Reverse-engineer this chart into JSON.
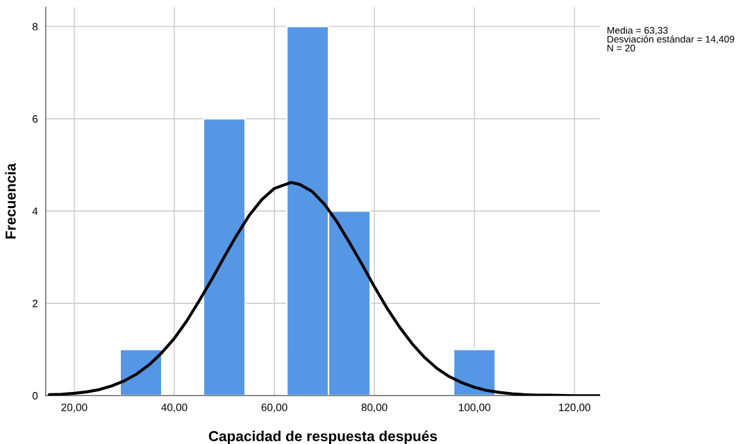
{
  "chart_data": {
    "type": "histogram",
    "xlabel": "Capacidad de respuesta después",
    "ylabel": "Frecuencia",
    "bins": [
      29.17,
      37.5,
      45.83,
      54.17,
      62.5,
      70.83,
      79.17,
      87.5,
      95.83,
      104.17
    ],
    "values": [
      1,
      0,
      6,
      0,
      8,
      4,
      0,
      0,
      1
    ],
    "color": "#5597e5",
    "series": [
      {
        "type": "line",
        "color": "#000000",
        "x": [
          15,
          17.5,
          20,
          22.5,
          25,
          27.5,
          30,
          32.5,
          35,
          37.5,
          40,
          42.5,
          45,
          47.5,
          50,
          52.5,
          55,
          57.5,
          60,
          63.33,
          65,
          67.5,
          70,
          72.5,
          75,
          77.5,
          80,
          82.5,
          85,
          87.5,
          90,
          92.5,
          95,
          97.5,
          100,
          102.5,
          105,
          107.5,
          110,
          112.5,
          115,
          120,
          125
        ],
        "values": [
          0.02,
          0.03,
          0.05,
          0.08,
          0.13,
          0.21,
          0.32,
          0.47,
          0.67,
          0.93,
          1.24,
          1.62,
          2.06,
          2.52,
          3.01,
          3.48,
          3.91,
          4.25,
          4.49,
          4.62,
          4.58,
          4.43,
          4.15,
          3.77,
          3.32,
          2.85,
          2.36,
          1.9,
          1.49,
          1.13,
          0.83,
          0.59,
          0.41,
          0.28,
          0.18,
          0.11,
          0.07,
          0.04,
          0.02,
          0.01,
          0.01,
          0.0,
          0.0
        ]
      }
    ],
    "xlim": [
      14.3,
      125.1
    ],
    "ylim": [
      0,
      8.42
    ],
    "xticks": [
      {
        "value": 20,
        "label": "20,00"
      },
      {
        "value": 40,
        "label": "40,00"
      },
      {
        "value": 60,
        "label": "60,00"
      },
      {
        "value": 80,
        "label": "80,00"
      },
      {
        "value": 100,
        "label": "100,00"
      },
      {
        "value": 120,
        "label": "120,00"
      }
    ],
    "yticks": [
      0,
      2,
      4,
      6,
      8
    ],
    "grid": true,
    "annotations": [
      "Media = 63,33",
      "Desviación estándar = 14,409",
      "N = 20"
    ]
  }
}
